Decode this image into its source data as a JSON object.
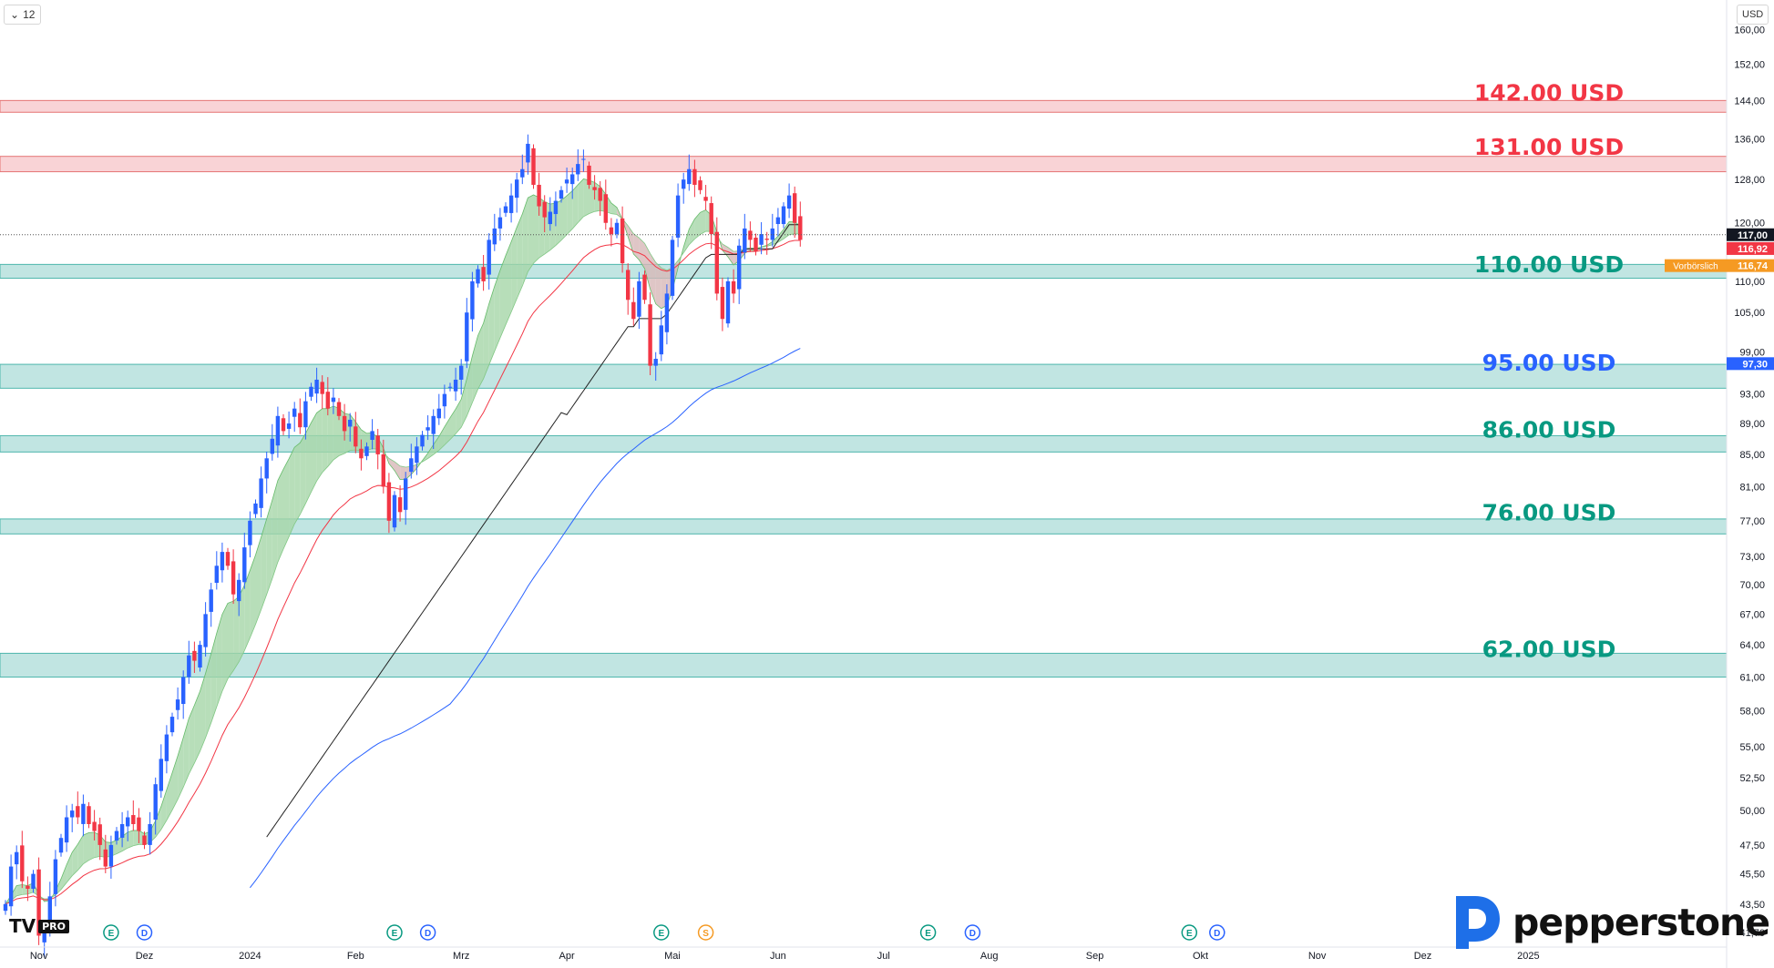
{
  "toolbar": {
    "interval_label": "12",
    "currency_label": "USD"
  },
  "brand": {
    "name": "pepperstone",
    "tv_mark": "TV",
    "tv_badge": "PRO"
  },
  "colors": {
    "up": "#2962ff",
    "down": "#f23645",
    "zone_green": "#b2dfdb",
    "zone_red": "#f8c8cc",
    "ema_fill_up": "#a5d6a7",
    "ema_fill_down": "#d7b8b8",
    "sma_red": "#f23645",
    "sma_blue": "#2962ff",
    "vwap_black": "#222222",
    "label_green": "#089981",
    "label_red": "#f23645",
    "label_blue": "#2962ff"
  },
  "chart_data": {
    "type": "candlestick",
    "y_scale": "log",
    "ylim": [
      40.8,
      165
    ],
    "price_ticks": [
      "160,00",
      "152,00",
      "144,00",
      "136,00",
      "128,00",
      "120,00",
      "110,00",
      "105,00",
      "99,00",
      "93,00",
      "89,00",
      "85,00",
      "81,00",
      "77,00",
      "73,00",
      "70,00",
      "67,00",
      "64,00",
      "61,00",
      "58,00",
      "55,00",
      "52,50",
      "50,00",
      "47,50",
      "45,50",
      "43,50",
      "41,70"
    ],
    "x_labels": [
      {
        "label": "Nov",
        "idx": 6
      },
      {
        "label": "Dez",
        "idx": 25
      },
      {
        "label": "2024",
        "idx": 44
      },
      {
        "label": "Feb",
        "idx": 63
      },
      {
        "label": "Mrz",
        "idx": 82
      },
      {
        "label": "Apr",
        "idx": 101
      },
      {
        "label": "Mai",
        "idx": 120
      },
      {
        "label": "Jun",
        "idx": 139
      },
      {
        "label": "Jul",
        "idx": 158
      },
      {
        "label": "Aug",
        "idx": 177
      },
      {
        "label": "Sep",
        "idx": 196
      },
      {
        "label": "Okt",
        "idx": 215
      },
      {
        "label": "Nov",
        "idx": 236
      },
      {
        "label": "Dez",
        "idx": 255
      },
      {
        "label": "2025",
        "idx": 274
      }
    ],
    "closes": [
      43.5,
      46,
      47,
      45,
      44.5,
      45.5,
      41.5,
      42,
      44,
      46.5,
      48,
      49.5,
      50,
      49.5,
      50.5,
      49,
      48.5,
      47.5,
      46,
      47.5,
      48.5,
      49,
      49.5,
      49,
      48.5,
      47.5,
      49,
      52,
      54,
      56,
      57.5,
      59,
      61,
      63,
      62.5,
      64,
      67,
      69.5,
      72,
      73.5,
      72,
      69,
      70.5,
      74,
      77,
      79,
      82,
      84.5,
      87,
      90,
      88,
      89,
      91,
      88.5,
      92,
      94,
      95,
      93,
      91,
      92.5,
      90,
      88,
      89.5,
      86,
      84.5,
      86,
      88,
      85,
      81,
      77,
      80,
      78,
      82,
      84.5,
      86,
      87.5,
      88.5,
      90,
      91,
      93,
      94,
      95,
      97,
      105,
      110,
      112,
      110,
      117,
      119,
      121,
      123,
      125,
      128,
      130,
      135,
      127,
      123,
      121,
      122,
      124,
      126,
      128,
      129,
      131,
      132,
      127,
      126,
      124,
      120,
      118,
      120,
      113,
      107,
      104,
      110,
      107,
      97,
      98,
      103,
      108,
      117,
      125,
      128,
      130,
      127,
      126,
      124,
      118,
      108,
      104,
      110,
      108,
      116,
      119,
      117,
      115,
      118,
      117,
      119,
      121,
      123,
      125,
      120,
      117
    ],
    "levels": [
      {
        "label": "142.00 USD",
        "price": 142,
        "color": "red"
      },
      {
        "label": "131.00 USD",
        "price": 131,
        "color": "red"
      },
      {
        "label": "110.00 USD",
        "price": 110,
        "color": "green"
      },
      {
        "label": "95.00 USD",
        "price": 95,
        "color": "blue"
      },
      {
        "label": "86.00 USD",
        "price": 86,
        "color": "green"
      },
      {
        "label": "76.00 USD",
        "price": 76,
        "color": "green"
      },
      {
        "label": "62.00 USD",
        "price": 62,
        "color": "green"
      }
    ],
    "zones": [
      {
        "from": 141.5,
        "to": 144,
        "color": "red"
      },
      {
        "from": 129.5,
        "to": 132.5,
        "color": "red"
      },
      {
        "from": 110.5,
        "to": 112.8,
        "color": "green"
      },
      {
        "from": 93.8,
        "to": 97.2,
        "color": "green"
      },
      {
        "from": 85.3,
        "to": 87.4,
        "color": "green"
      },
      {
        "from": 75.5,
        "to": 77.2,
        "color": "green"
      },
      {
        "from": 61,
        "to": 63.2,
        "color": "green"
      }
    ],
    "price_tags": [
      {
        "text": "117,00",
        "price": 117.9,
        "bg": "#131722",
        "fg": "#ffffff"
      },
      {
        "text": "116,92",
        "price": 115.5,
        "bg": "#f23645",
        "fg": "#ffffff"
      },
      {
        "text": "116,74",
        "price": 112.6,
        "bg": "#f59a23",
        "fg": "#ffffff"
      },
      {
        "text": "97,30",
        "price": 97.3,
        "bg": "#2962ff",
        "fg": "#ffffff"
      }
    ],
    "premarket_label": "Vorbörslich",
    "event_markers": [
      {
        "type": "E",
        "idx": 19,
        "color": "#089981"
      },
      {
        "type": "D",
        "idx": 25,
        "color": "#2962ff"
      },
      {
        "type": "E",
        "idx": 70,
        "color": "#089981"
      },
      {
        "type": "D",
        "idx": 76,
        "color": "#2962ff"
      },
      {
        "type": "E",
        "idx": 118,
        "color": "#089981"
      },
      {
        "type": "S",
        "idx": 126,
        "color": "#f59a23"
      },
      {
        "type": "E",
        "idx": 166,
        "color": "#089981"
      },
      {
        "type": "D",
        "idx": 174,
        "color": "#2962ff"
      },
      {
        "type": "E",
        "idx": 213,
        "color": "#089981"
      },
      {
        "type": "D",
        "idx": 218,
        "color": "#2962ff"
      }
    ]
  }
}
